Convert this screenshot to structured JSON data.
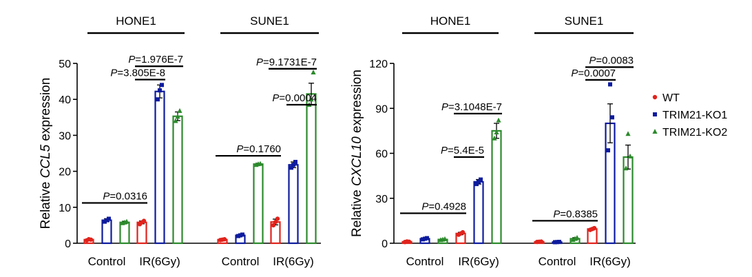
{
  "legend": [
    {
      "name": "WT",
      "color": "#e0231c",
      "marker": "circle"
    },
    {
      "name": "TRIM21-KO1",
      "color": "#0d1b9e",
      "marker": "square"
    },
    {
      "name": "TRIM21-KO2",
      "color": "#2c8a2c",
      "marker": "triangle"
    }
  ],
  "chart_data": [
    {
      "type": "bar",
      "ylabel_prefix": "Relative ",
      "ylabel_gene": "CCL5",
      "ylabel_suffix": " expression",
      "ylim": [
        0,
        50
      ],
      "yticks": [
        0,
        10,
        20,
        30,
        40,
        50
      ],
      "groups": [
        "HONE1",
        "SUNE1"
      ],
      "categories": [
        "Control",
        "IR(6Gy)"
      ],
      "series": [
        "WT",
        "TRIM21-KO1",
        "TRIM21-KO2"
      ],
      "bars": [
        {
          "group": "HONE1",
          "category": "Control",
          "series": "WT",
          "value": 1.0,
          "err": 0.2,
          "points": [
            0.8,
            1.0,
            1.1
          ]
        },
        {
          "group": "HONE1",
          "category": "Control",
          "series": "TRIM21-KO1",
          "value": 6.4,
          "err": 0.4,
          "points": [
            6.0,
            6.8,
            6.4
          ]
        },
        {
          "group": "HONE1",
          "category": "Control",
          "series": "TRIM21-KO2",
          "value": 5.8,
          "err": 0.3,
          "points": [
            5.6,
            6.0,
            5.8
          ]
        },
        {
          "group": "HONE1",
          "category": "IR(6Gy)",
          "series": "WT",
          "value": 5.8,
          "err": 0.4,
          "points": [
            5.3,
            6.2,
            5.8
          ]
        },
        {
          "group": "HONE1",
          "category": "IR(6Gy)",
          "series": "TRIM21-KO1",
          "value": 42.2,
          "err": 1.8,
          "points": [
            40.0,
            44.0,
            42.5
          ]
        },
        {
          "group": "HONE1",
          "category": "IR(6Gy)",
          "series": "TRIM21-KO2",
          "value": 35.3,
          "err": 1.2,
          "points": [
            34.0,
            36.8,
            35.2
          ]
        },
        {
          "group": "SUNE1",
          "category": "Control",
          "series": "WT",
          "value": 1.0,
          "err": 0.1,
          "points": [
            0.9,
            1.1,
            1.0
          ]
        },
        {
          "group": "SUNE1",
          "category": "Control",
          "series": "TRIM21-KO1",
          "value": 2.2,
          "err": 0.2,
          "points": [
            2.0,
            2.4,
            2.2
          ]
        },
        {
          "group": "SUNE1",
          "category": "Control",
          "series": "TRIM21-KO2",
          "value": 22.0,
          "err": 0.2,
          "points": [
            21.8,
            22.1,
            22.0
          ]
        },
        {
          "group": "SUNE1",
          "category": "IR(6Gy)",
          "series": "WT",
          "value": 5.9,
          "err": 0.8,
          "points": [
            5.0,
            6.8,
            5.9
          ]
        },
        {
          "group": "SUNE1",
          "category": "IR(6Gy)",
          "series": "TRIM21-KO1",
          "value": 21.8,
          "err": 0.8,
          "points": [
            21.0,
            22.6,
            21.8
          ]
        },
        {
          "group": "SUNE1",
          "category": "IR(6Gy)",
          "series": "TRIM21-KO2",
          "value": 41.5,
          "err": 3.0,
          "points": [
            38.5,
            47.5,
            40.0
          ]
        }
      ],
      "comparisons": [
        {
          "label": "=0.0316",
          "group": "HONE1",
          "from": [
            "Control",
            "WT"
          ],
          "to": [
            "IR(6Gy)",
            "WT"
          ],
          "y": 11.2
        },
        {
          "label": "=3.805E-8",
          "group": "HONE1",
          "from": [
            "IR(6Gy)",
            "WT"
          ],
          "to": [
            "IR(6Gy)",
            "TRIM21-KO1"
          ],
          "y": 45.5
        },
        {
          "label": "=1.976E-7",
          "group": "HONE1",
          "from": [
            "IR(6Gy)",
            "WT"
          ],
          "to": [
            "IR(6Gy)",
            "TRIM21-KO2"
          ],
          "y": 49.2
        },
        {
          "label": "=0.1760",
          "group": "SUNE1",
          "from": [
            "Control",
            "WT"
          ],
          "to": [
            "IR(6Gy)",
            "WT"
          ],
          "y": 24.3
        },
        {
          "label": "=0.0004",
          "group": "SUNE1",
          "from": [
            "IR(6Gy)",
            "TRIM21-KO1"
          ],
          "to": [
            "IR(6Gy)",
            "TRIM21-KO2"
          ],
          "y": 38.5
        },
        {
          "label": "=9.1731E-7",
          "group": "SUNE1",
          "from": [
            "IR(6Gy)",
            "WT"
          ],
          "to": [
            "IR(6Gy)",
            "TRIM21-KO2"
          ],
          "y": 48.5
        }
      ]
    },
    {
      "type": "bar",
      "ylabel_prefix": "Relative ",
      "ylabel_gene": "CXCL10",
      "ylabel_suffix": " expression",
      "ylim": [
        0,
        120
      ],
      "yticks": [
        0,
        30,
        60,
        90,
        120
      ],
      "groups": [
        "HONE1",
        "SUNE1"
      ],
      "categories": [
        "Control",
        "IR(6Gy)"
      ],
      "series": [
        "WT",
        "TRIM21-KO1",
        "TRIM21-KO2"
      ],
      "bars": [
        {
          "group": "HONE1",
          "category": "Control",
          "series": "WT",
          "value": 1.0,
          "err": 0.2,
          "points": [
            0.8,
            1.0,
            1.2
          ]
        },
        {
          "group": "HONE1",
          "category": "Control",
          "series": "TRIM21-KO1",
          "value": 3.0,
          "err": 0.4,
          "points": [
            2.6,
            3.4,
            3.0
          ]
        },
        {
          "group": "HONE1",
          "category": "Control",
          "series": "TRIM21-KO2",
          "value": 2.5,
          "err": 0.3,
          "points": [
            2.2,
            2.8,
            2.5
          ]
        },
        {
          "group": "HONE1",
          "category": "IR(6Gy)",
          "series": "WT",
          "value": 6.5,
          "err": 0.8,
          "points": [
            5.7,
            7.3,
            6.5
          ]
        },
        {
          "group": "HONE1",
          "category": "IR(6Gy)",
          "series": "TRIM21-KO1",
          "value": 41.0,
          "err": 1.5,
          "points": [
            39.5,
            42.5,
            41.0
          ]
        },
        {
          "group": "HONE1",
          "category": "IR(6Gy)",
          "series": "TRIM21-KO2",
          "value": 75.0,
          "err": 5.0,
          "points": [
            70.0,
            82.0,
            74.0
          ]
        },
        {
          "group": "SUNE1",
          "category": "Control",
          "series": "WT",
          "value": 1.0,
          "err": 0.1,
          "points": [
            0.9,
            1.1,
            1.0
          ]
        },
        {
          "group": "SUNE1",
          "category": "Control",
          "series": "TRIM21-KO1",
          "value": 0.8,
          "err": 0.1,
          "points": [
            0.7,
            0.9,
            0.8
          ]
        },
        {
          "group": "SUNE1",
          "category": "Control",
          "series": "TRIM21-KO2",
          "value": 3.0,
          "err": 0.7,
          "points": [
            2.3,
            3.7,
            3.0
          ]
        },
        {
          "group": "SUNE1",
          "category": "IR(6Gy)",
          "series": "WT",
          "value": 9.5,
          "err": 0.6,
          "points": [
            8.9,
            10.1,
            9.5
          ]
        },
        {
          "group": "SUNE1",
          "category": "IR(6Gy)",
          "series": "TRIM21-KO1",
          "value": 80.0,
          "err": 13.0,
          "points": [
            62.0,
            84.0,
            106.0
          ]
        },
        {
          "group": "SUNE1",
          "category": "IR(6Gy)",
          "series": "TRIM21-KO2",
          "value": 57.5,
          "err": 8.0,
          "points": [
            50.0,
            58.0,
            73.0
          ]
        }
      ],
      "comparisons": [
        {
          "label": "=0.4928",
          "group": "HONE1",
          "from": [
            "Control",
            "WT"
          ],
          "to": [
            "IR(6Gy)",
            "WT"
          ],
          "y": 20.0
        },
        {
          "label": "=5.4E-5",
          "group": "HONE1",
          "from": [
            "IR(6Gy)",
            "WT"
          ],
          "to": [
            "IR(6Gy)",
            "TRIM21-KO1"
          ],
          "y": 57.5
        },
        {
          "label": "=3.1048E-7",
          "group": "HONE1",
          "from": [
            "IR(6Gy)",
            "WT"
          ],
          "to": [
            "IR(6Gy)",
            "TRIM21-KO2"
          ],
          "y": 86.5
        },
        {
          "label": "=0.8385",
          "group": "SUNE1",
          "from": [
            "Control",
            "WT"
          ],
          "to": [
            "IR(6Gy)",
            "WT"
          ],
          "y": 15.0
        },
        {
          "label": "=0.0007",
          "group": "SUNE1",
          "from": [
            "IR(6Gy)",
            "WT"
          ],
          "to": [
            "IR(6Gy)",
            "TRIM21-KO1"
          ],
          "y": 109.0
        },
        {
          "label": "=0.0083",
          "group": "SUNE1",
          "from": [
            "IR(6Gy)",
            "WT"
          ],
          "to": [
            "IR(6Gy)",
            "TRIM21-KO2"
          ],
          "y": 117.5
        }
      ]
    }
  ],
  "pval_prefix": "P"
}
